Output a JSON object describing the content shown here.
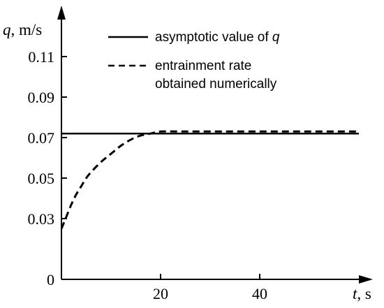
{
  "chart_data": {
    "type": "line",
    "x_axis": {
      "label_var": "t",
      "label_unit": ", s",
      "ticks": [
        "20",
        "40"
      ],
      "tick_values": [
        20,
        40
      ],
      "range": [
        0,
        60
      ]
    },
    "y_axis": {
      "label_var": "q",
      "label_unit": ", m/s",
      "ticks": [
        "0",
        "0.03",
        "0.05",
        "0.07",
        "0.09",
        "0.11"
      ],
      "tick_values": [
        0,
        0.03,
        0.05,
        0.07,
        0.09,
        0.11
      ],
      "origin_label": "0",
      "scale_note": "axis break between 0 and 0.03"
    },
    "series": [
      {
        "name_text": "asymptotic value of ",
        "name_var": "q",
        "style": "solid",
        "x": [
          0,
          60
        ],
        "y": [
          0.072,
          0.072
        ]
      },
      {
        "name_line1": "entrainment rate",
        "name_line2": "obtained numerically",
        "style": "dashed",
        "x": [
          0,
          1,
          2,
          3,
          4,
          5,
          6,
          8,
          10,
          12,
          14,
          16,
          18,
          20,
          24,
          30,
          40,
          50,
          60
        ],
        "y": [
          0.025,
          0.031,
          0.037,
          0.042,
          0.046,
          0.05,
          0.053,
          0.058,
          0.062,
          0.066,
          0.069,
          0.071,
          0.072,
          0.073,
          0.073,
          0.073,
          0.073,
          0.073,
          0.073
        ]
      }
    ],
    "legend_position": "top-right",
    "grid": false
  }
}
